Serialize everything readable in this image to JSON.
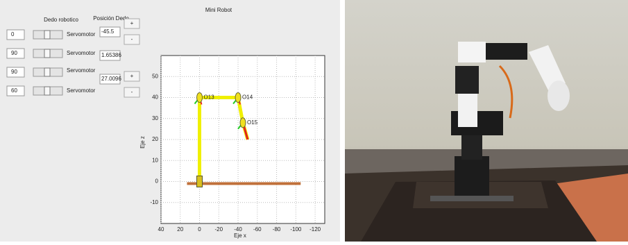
{
  "window": {
    "title": "Mini Robot"
  },
  "headers": {
    "slider": "Dedo robotico",
    "position": "Posición Dedo"
  },
  "servos": [
    {
      "value": "0",
      "label": "Servomotor"
    },
    {
      "value": "90",
      "label": "Servomotor"
    },
    {
      "value": "90",
      "label": "Servomotor"
    },
    {
      "value": "60",
      "label": "Servomotor"
    }
  ],
  "positions": [
    "-45.5",
    "1.65386",
    "27.0096"
  ],
  "buttons": [
    "+",
    "-",
    "+",
    "-"
  ],
  "plot": {
    "xlabel": "Eje x",
    "ylabel": "Eje z",
    "xlim": [
      40,
      -130
    ],
    "ylim": [
      -20,
      60
    ],
    "xticks": [
      40,
      20,
      0,
      -20,
      -40,
      -60,
      -80,
      -100,
      -120
    ],
    "yticks": [
      -10,
      0,
      10,
      20,
      30,
      40,
      50
    ],
    "arm": {
      "x": [
        0,
        0,
        -40,
        -45,
        -50
      ],
      "z": [
        0,
        40,
        40,
        28,
        20
      ]
    },
    "frames": [
      {
        "label": "O13",
        "x": 0,
        "z": 40
      },
      {
        "label": "O14",
        "x": -40,
        "z": 40
      },
      {
        "label": "O15",
        "x": -45,
        "z": 28
      }
    ],
    "ground": {
      "x": [
        13,
        -105
      ],
      "z": -1
    }
  }
}
